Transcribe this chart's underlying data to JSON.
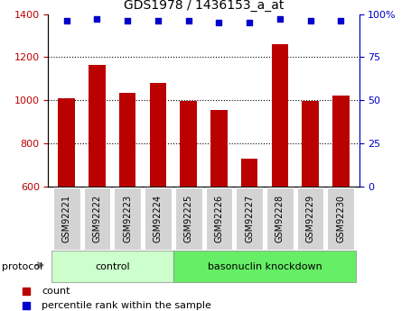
{
  "title": "GDS1978 / 1436153_a_at",
  "samples": [
    "GSM92221",
    "GSM92222",
    "GSM92223",
    "GSM92224",
    "GSM92225",
    "GSM92226",
    "GSM92227",
    "GSM92228",
    "GSM92229",
    "GSM92230"
  ],
  "bar_values": [
    1010,
    1165,
    1033,
    1080,
    995,
    955,
    730,
    1260,
    995,
    1022
  ],
  "scatter_values": [
    96,
    97,
    96,
    96,
    96,
    95,
    95,
    97,
    96,
    96
  ],
  "bar_color": "#bb0000",
  "scatter_color": "#0000cc",
  "ylim_left": [
    600,
    1400
  ],
  "ylim_right": [
    0,
    100
  ],
  "yticks_left": [
    600,
    800,
    1000,
    1200,
    1400
  ],
  "yticks_right": [
    0,
    25,
    50,
    75,
    100
  ],
  "grid_values": [
    800,
    1000,
    1200
  ],
  "control_group": [
    0,
    1,
    2,
    3
  ],
  "knockdown_group": [
    4,
    5,
    6,
    7,
    8,
    9
  ],
  "control_label": "control",
  "knockdown_label": "basonuclin knockdown",
  "protocol_label": "protocol",
  "legend_count_label": "count",
  "legend_pct_label": "percentile rank within the sample",
  "group_bg_color_control": "#ccffcc",
  "group_bg_color_knockdown": "#66ee66",
  "xlabel_bg_color": "#d3d3d3",
  "title_fontsize": 10,
  "tick_fontsize": 8,
  "label_fontsize": 7
}
